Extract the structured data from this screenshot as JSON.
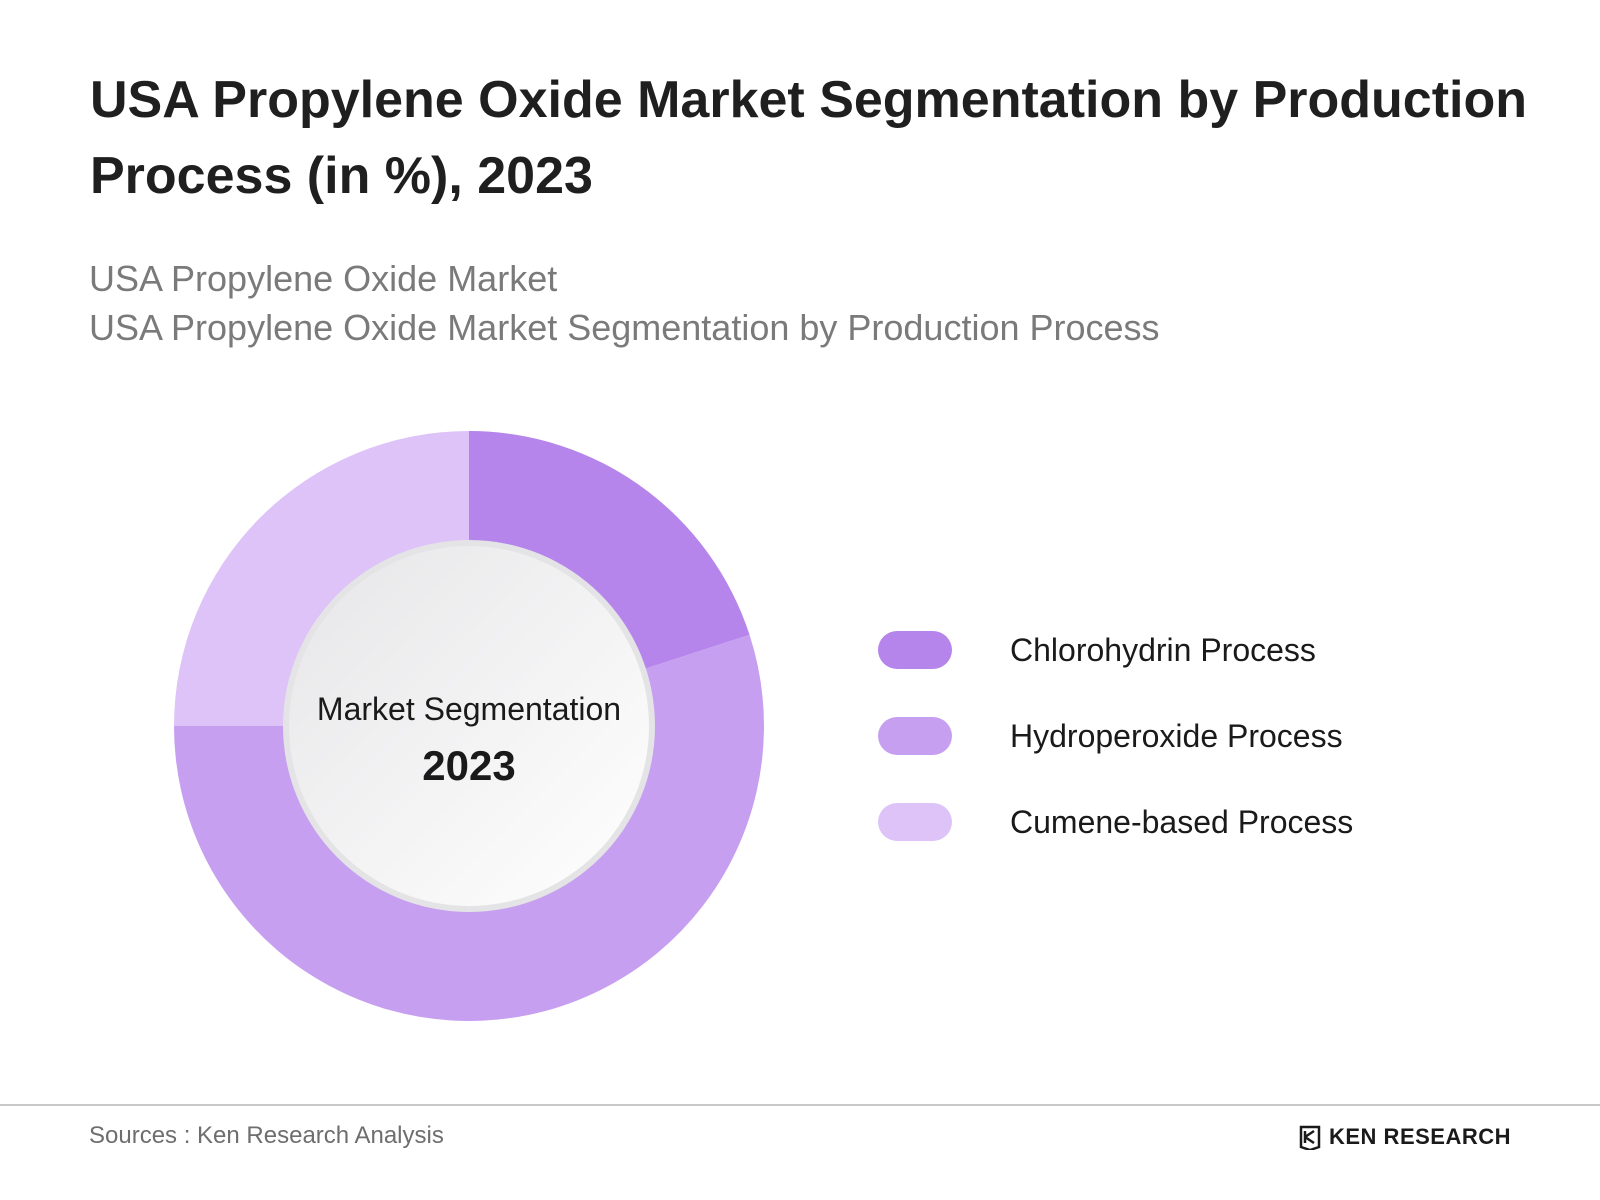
{
  "header": {
    "title": "USA Propylene Oxide Market Segmentation by Production Process (in %), 2023",
    "subtitle_1": "USA Propylene Oxide Market",
    "subtitle_2": "USA Propylene Oxide Market Segmentation by Production Process"
  },
  "chart_data": {
    "type": "pie",
    "variant": "donut",
    "center_label": "Market Segmentation",
    "center_year": "2023",
    "categories": [
      "Chlorohydrin Process",
      "Hydroperoxide Process",
      "Cumene-based Process"
    ],
    "values": [
      20,
      55,
      25
    ],
    "colors": [
      "#b585eb",
      "#c79ff0",
      "#ddc3f7"
    ],
    "legend_position": "right"
  },
  "footer": {
    "source": "Sources : Ken Research Analysis",
    "logo_text": "KEN RESEARCH"
  }
}
